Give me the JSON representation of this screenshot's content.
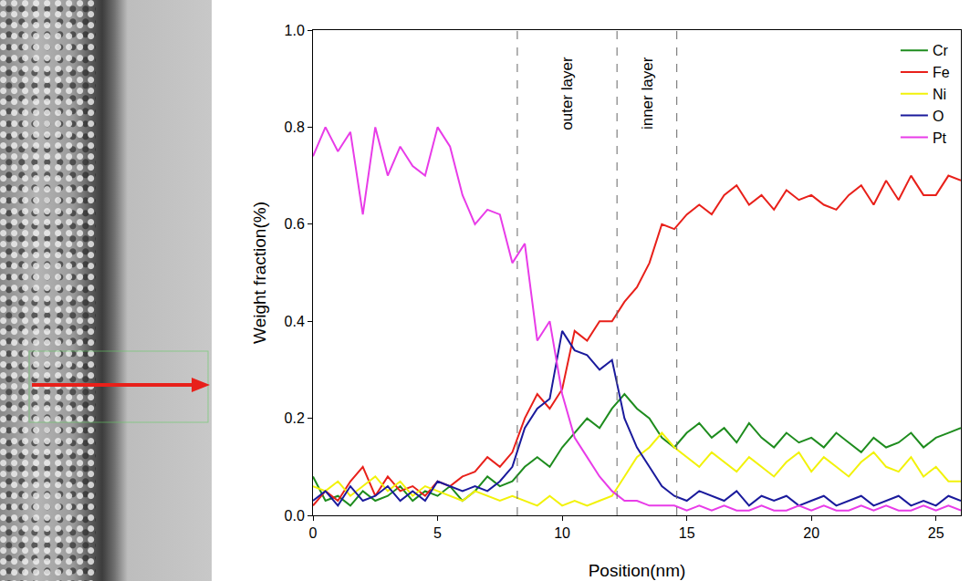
{
  "chart_data": {
    "type": "line",
    "x_label": "Position(nm)",
    "y_label": "Weight fraction(%)",
    "xlim": [
      0,
      26
    ],
    "xticks": [
      0,
      5,
      10,
      15,
      20,
      25
    ],
    "ylim": [
      0,
      1
    ],
    "yticks": [
      {
        "value": 0,
        "label": "0.0"
      },
      0.2,
      0.4,
      0.6,
      0.8,
      {
        "value": 1,
        "label": "1.0"
      }
    ],
    "grid": false,
    "legend": "top right",
    "vlines": [
      8.2,
      12.2,
      14.6
    ],
    "annotations": [
      {
        "text": "outer layer",
        "x": 10.2,
        "y": 0.87
      },
      {
        "text": "inner layer",
        "x": 13.4,
        "y": 0.87
      }
    ],
    "x": [
      0,
      0.5,
      1,
      1.5,
      2,
      2.5,
      3,
      3.5,
      4,
      4.5,
      5,
      5.5,
      6,
      6.5,
      7,
      7.5,
      8,
      8.5,
      9,
      9.5,
      10,
      10.5,
      11,
      11.5,
      12,
      12.5,
      13,
      13.5,
      14,
      14.5,
      15,
      15.5,
      16,
      16.5,
      17,
      17.5,
      18,
      18.5,
      19,
      19.5,
      20,
      20.5,
      21,
      21.5,
      22,
      22.5,
      23,
      23.5,
      24,
      24.5,
      25,
      25.5,
      26
    ],
    "series": [
      {
        "name": "Cr",
        "color": "#1e8c1e",
        "values": [
          0.08,
          0.03,
          0.04,
          0.02,
          0.05,
          0.03,
          0.04,
          0.06,
          0.03,
          0.05,
          0.04,
          0.06,
          0.03,
          0.05,
          0.08,
          0.06,
          0.07,
          0.1,
          0.12,
          0.1,
          0.14,
          0.17,
          0.2,
          0.18,
          0.22,
          0.25,
          0.22,
          0.2,
          0.16,
          0.14,
          0.17,
          0.19,
          0.16,
          0.18,
          0.15,
          0.19,
          0.16,
          0.14,
          0.17,
          0.15,
          0.16,
          0.14,
          0.17,
          0.15,
          0.13,
          0.16,
          0.14,
          0.15,
          0.17,
          0.14,
          0.16,
          0.17,
          0.18
        ]
      },
      {
        "name": "Fe",
        "color": "#e8201a",
        "values": [
          0.02,
          0.05,
          0.03,
          0.07,
          0.1,
          0.04,
          0.08,
          0.05,
          0.06,
          0.04,
          0.07,
          0.06,
          0.08,
          0.09,
          0.12,
          0.1,
          0.13,
          0.2,
          0.25,
          0.22,
          0.26,
          0.38,
          0.36,
          0.4,
          0.4,
          0.44,
          0.47,
          0.52,
          0.6,
          0.59,
          0.62,
          0.64,
          0.62,
          0.66,
          0.68,
          0.64,
          0.66,
          0.63,
          0.67,
          0.65,
          0.66,
          0.64,
          0.63,
          0.66,
          0.68,
          0.64,
          0.69,
          0.65,
          0.7,
          0.66,
          0.66,
          0.7,
          0.69
        ]
      },
      {
        "name": "Ni",
        "color": "#f2f20a",
        "values": [
          0.06,
          0.05,
          0.07,
          0.04,
          0.06,
          0.08,
          0.05,
          0.07,
          0.04,
          0.06,
          0.05,
          0.04,
          0.03,
          0.05,
          0.04,
          0.03,
          0.04,
          0.03,
          0.02,
          0.04,
          0.02,
          0.03,
          0.02,
          0.03,
          0.04,
          0.08,
          0.12,
          0.14,
          0.17,
          0.14,
          0.12,
          0.1,
          0.13,
          0.11,
          0.09,
          0.12,
          0.1,
          0.08,
          0.11,
          0.13,
          0.09,
          0.12,
          0.1,
          0.08,
          0.11,
          0.13,
          0.1,
          0.09,
          0.12,
          0.08,
          0.1,
          0.07,
          0.07
        ]
      },
      {
        "name": "O",
        "color": "#1a1a9c",
        "values": [
          0.03,
          0.05,
          0.02,
          0.06,
          0.03,
          0.04,
          0.06,
          0.03,
          0.05,
          0.03,
          0.07,
          0.06,
          0.05,
          0.06,
          0.05,
          0.07,
          0.1,
          0.18,
          0.22,
          0.24,
          0.38,
          0.34,
          0.33,
          0.3,
          0.32,
          0.2,
          0.14,
          0.1,
          0.06,
          0.04,
          0.03,
          0.05,
          0.04,
          0.03,
          0.05,
          0.02,
          0.04,
          0.03,
          0.04,
          0.02,
          0.03,
          0.04,
          0.02,
          0.03,
          0.04,
          0.02,
          0.03,
          0.04,
          0.02,
          0.03,
          0.02,
          0.04,
          0.03
        ]
      },
      {
        "name": "Pt",
        "color": "#e83ce8",
        "values": [
          0.74,
          0.8,
          0.75,
          0.79,
          0.62,
          0.8,
          0.7,
          0.76,
          0.72,
          0.7,
          0.8,
          0.76,
          0.66,
          0.6,
          0.63,
          0.62,
          0.52,
          0.56,
          0.36,
          0.4,
          0.25,
          0.16,
          0.12,
          0.08,
          0.05,
          0.03,
          0.03,
          0.02,
          0.02,
          0.02,
          0.01,
          0.02,
          0.01,
          0.02,
          0.01,
          0.01,
          0.02,
          0.01,
          0.01,
          0.02,
          0.01,
          0.02,
          0.01,
          0.01,
          0.02,
          0.01,
          0.02,
          0.01,
          0.01,
          0.02,
          0.01,
          0.02,
          0.01
        ]
      }
    ]
  }
}
